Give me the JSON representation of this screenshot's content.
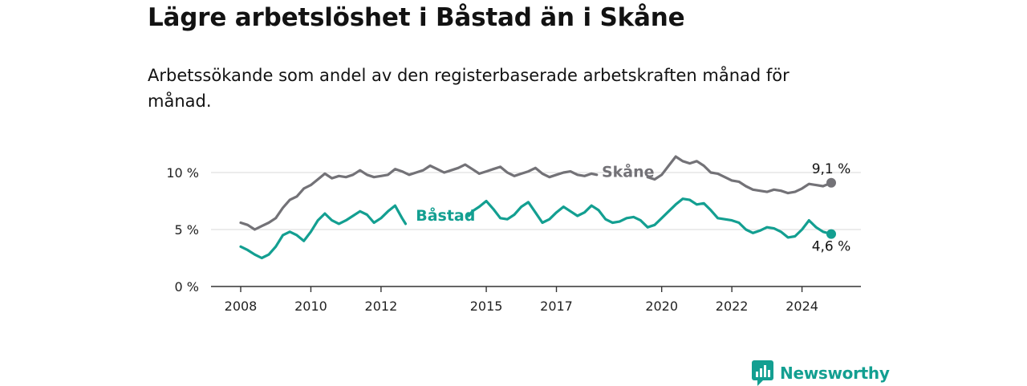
{
  "header": {
    "title": "Lägre arbetslöshet i Båstad än i Skåne",
    "subtitle": "Arbetssökande som andel av den registerbaserade arbetskraften månad för månad."
  },
  "brand": {
    "name": "Newsworthy",
    "color": "#139f91"
  },
  "chart_data": {
    "type": "line",
    "title": "Lägre arbetslöshet i Båstad än i Skåne",
    "subtitle": "Arbetssökande som andel av den registerbaserade arbetskraften månad för månad.",
    "xlabel": "",
    "ylabel": "",
    "x_range": [
      2008.0,
      2024.833
    ],
    "ylim": [
      0,
      11.5
    ],
    "y_ticks": [
      0,
      5,
      10
    ],
    "y_tick_labels": [
      "0 %",
      "5 %",
      "10 %"
    ],
    "x_ticks": [
      2008,
      2010,
      2012,
      2015,
      2017,
      2020,
      2022,
      2024
    ],
    "x_tick_labels": [
      "2008",
      "2010",
      "2012",
      "2015",
      "2017",
      "2020",
      "2022",
      "2024"
    ],
    "grid": true,
    "series": [
      {
        "name": "Skåne",
        "color": "#737277",
        "end_label": "9,1 %",
        "label_at": 2018.2,
        "gap": [
          2018.15,
          2019.6
        ],
        "points": [
          [
            2008.0,
            5.6
          ],
          [
            2008.2,
            5.4
          ],
          [
            2008.4,
            5.0
          ],
          [
            2008.6,
            5.3
          ],
          [
            2008.8,
            5.6
          ],
          [
            2009.0,
            6.0
          ],
          [
            2009.2,
            6.9
          ],
          [
            2009.4,
            7.6
          ],
          [
            2009.6,
            7.9
          ],
          [
            2009.8,
            8.6
          ],
          [
            2010.0,
            8.9
          ],
          [
            2010.2,
            9.4
          ],
          [
            2010.4,
            9.9
          ],
          [
            2010.6,
            9.5
          ],
          [
            2010.8,
            9.7
          ],
          [
            2011.0,
            9.6
          ],
          [
            2011.2,
            9.8
          ],
          [
            2011.4,
            10.2
          ],
          [
            2011.6,
            9.8
          ],
          [
            2011.8,
            9.6
          ],
          [
            2012.0,
            9.7
          ],
          [
            2012.2,
            9.8
          ],
          [
            2012.4,
            10.3
          ],
          [
            2012.6,
            10.1
          ],
          [
            2012.8,
            9.8
          ],
          [
            2013.0,
            10.0
          ],
          [
            2013.2,
            10.2
          ],
          [
            2013.4,
            10.6
          ],
          [
            2013.6,
            10.3
          ],
          [
            2013.8,
            10.0
          ],
          [
            2014.0,
            10.2
          ],
          [
            2014.2,
            10.4
          ],
          [
            2014.4,
            10.7
          ],
          [
            2014.6,
            10.3
          ],
          [
            2014.8,
            9.9
          ],
          [
            2015.0,
            10.1
          ],
          [
            2015.2,
            10.3
          ],
          [
            2015.4,
            10.5
          ],
          [
            2015.6,
            10.0
          ],
          [
            2015.8,
            9.7
          ],
          [
            2016.0,
            9.9
          ],
          [
            2016.2,
            10.1
          ],
          [
            2016.4,
            10.4
          ],
          [
            2016.6,
            9.9
          ],
          [
            2016.8,
            9.6
          ],
          [
            2017.0,
            9.8
          ],
          [
            2017.2,
            10.0
          ],
          [
            2017.4,
            10.1
          ],
          [
            2017.6,
            9.8
          ],
          [
            2017.8,
            9.7
          ],
          [
            2018.0,
            9.9
          ],
          [
            2018.15,
            9.8
          ],
          [
            2019.6,
            9.6
          ],
          [
            2019.8,
            9.4
          ],
          [
            2020.0,
            9.8
          ],
          [
            2020.2,
            10.6
          ],
          [
            2020.4,
            11.4
          ],
          [
            2020.6,
            11.0
          ],
          [
            2020.8,
            10.8
          ],
          [
            2021.0,
            11.0
          ],
          [
            2021.2,
            10.6
          ],
          [
            2021.4,
            10.0
          ],
          [
            2021.6,
            9.9
          ],
          [
            2021.8,
            9.6
          ],
          [
            2022.0,
            9.3
          ],
          [
            2022.2,
            9.2
          ],
          [
            2022.4,
            8.8
          ],
          [
            2022.6,
            8.5
          ],
          [
            2022.8,
            8.4
          ],
          [
            2023.0,
            8.3
          ],
          [
            2023.2,
            8.5
          ],
          [
            2023.4,
            8.4
          ],
          [
            2023.6,
            8.2
          ],
          [
            2023.8,
            8.3
          ],
          [
            2024.0,
            8.6
          ],
          [
            2024.2,
            9.0
          ],
          [
            2024.4,
            8.9
          ],
          [
            2024.6,
            8.8
          ],
          [
            2024.833,
            9.1
          ]
        ]
      },
      {
        "name": "Båstad",
        "color": "#139f91",
        "end_label": "4,6 %",
        "label_at": 2012.9,
        "gap": [
          2012.7,
          2014.5
        ],
        "points": [
          [
            2008.0,
            3.5
          ],
          [
            2008.2,
            3.2
          ],
          [
            2008.4,
            2.8
          ],
          [
            2008.6,
            2.5
          ],
          [
            2008.8,
            2.8
          ],
          [
            2009.0,
            3.5
          ],
          [
            2009.2,
            4.5
          ],
          [
            2009.4,
            4.8
          ],
          [
            2009.6,
            4.5
          ],
          [
            2009.8,
            4.0
          ],
          [
            2010.0,
            4.8
          ],
          [
            2010.2,
            5.8
          ],
          [
            2010.4,
            6.4
          ],
          [
            2010.6,
            5.8
          ],
          [
            2010.8,
            5.5
          ],
          [
            2011.0,
            5.8
          ],
          [
            2011.2,
            6.2
          ],
          [
            2011.4,
            6.6
          ],
          [
            2011.6,
            6.3
          ],
          [
            2011.8,
            5.6
          ],
          [
            2012.0,
            6.0
          ],
          [
            2012.2,
            6.6
          ],
          [
            2012.4,
            7.1
          ],
          [
            2012.6,
            6.0
          ],
          [
            2012.7,
            5.5
          ],
          [
            2014.5,
            6.2
          ],
          [
            2014.6,
            6.6
          ],
          [
            2014.8,
            7.0
          ],
          [
            2015.0,
            7.5
          ],
          [
            2015.2,
            6.8
          ],
          [
            2015.4,
            6.0
          ],
          [
            2015.6,
            5.9
          ],
          [
            2015.8,
            6.3
          ],
          [
            2016.0,
            7.0
          ],
          [
            2016.2,
            7.4
          ],
          [
            2016.4,
            6.5
          ],
          [
            2016.6,
            5.6
          ],
          [
            2016.8,
            5.9
          ],
          [
            2017.0,
            6.5
          ],
          [
            2017.2,
            7.0
          ],
          [
            2017.4,
            6.6
          ],
          [
            2017.6,
            6.2
          ],
          [
            2017.8,
            6.5
          ],
          [
            2018.0,
            7.1
          ],
          [
            2018.2,
            6.7
          ],
          [
            2018.4,
            5.9
          ],
          [
            2018.6,
            5.6
          ],
          [
            2018.8,
            5.7
          ],
          [
            2019.0,
            6.0
          ],
          [
            2019.2,
            6.1
          ],
          [
            2019.4,
            5.8
          ],
          [
            2019.6,
            5.2
          ],
          [
            2019.8,
            5.4
          ],
          [
            2020.0,
            6.0
          ],
          [
            2020.2,
            6.6
          ],
          [
            2020.4,
            7.2
          ],
          [
            2020.6,
            7.7
          ],
          [
            2020.8,
            7.6
          ],
          [
            2021.0,
            7.2
          ],
          [
            2021.2,
            7.3
          ],
          [
            2021.4,
            6.7
          ],
          [
            2021.6,
            6.0
          ],
          [
            2021.8,
            5.9
          ],
          [
            2022.0,
            5.8
          ],
          [
            2022.2,
            5.6
          ],
          [
            2022.4,
            5.0
          ],
          [
            2022.6,
            4.7
          ],
          [
            2022.8,
            4.9
          ],
          [
            2023.0,
            5.2
          ],
          [
            2023.2,
            5.1
          ],
          [
            2023.4,
            4.8
          ],
          [
            2023.6,
            4.3
          ],
          [
            2023.8,
            4.4
          ],
          [
            2024.0,
            5.0
          ],
          [
            2024.2,
            5.8
          ],
          [
            2024.4,
            5.2
          ],
          [
            2024.6,
            4.8
          ],
          [
            2024.833,
            4.6
          ]
        ]
      }
    ]
  }
}
